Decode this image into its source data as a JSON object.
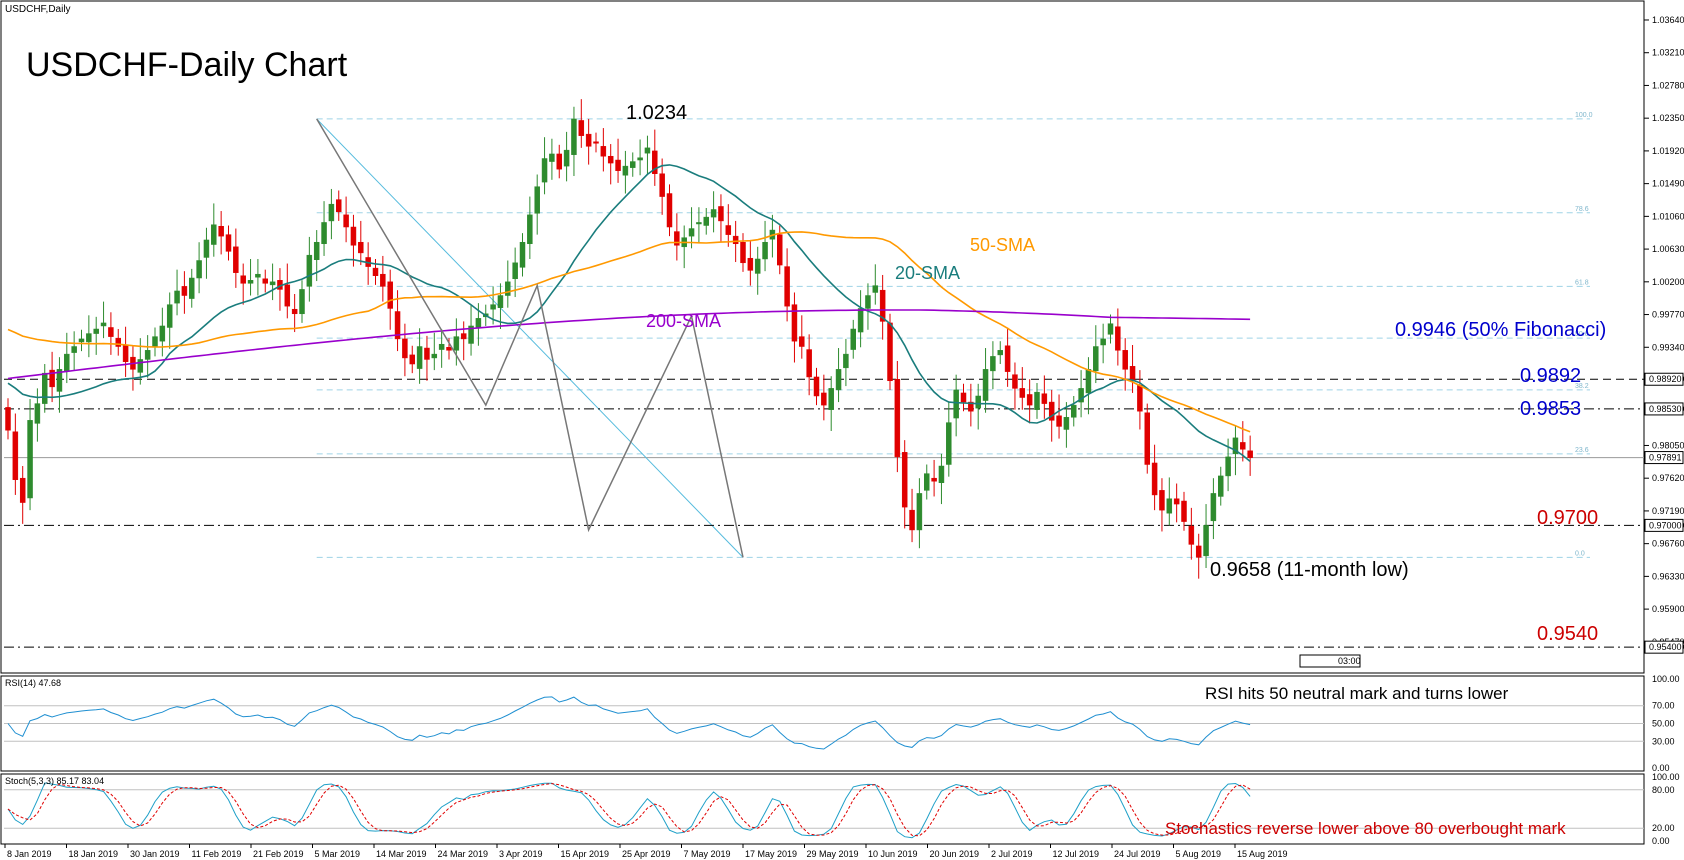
{
  "chart_data": {
    "type": "candlestick",
    "symbol_label": "USDCHF,Daily",
    "title": "USDCHF-Daily Chart",
    "price_axis": {
      "ticks": [
        "1.03640",
        "1.03210",
        "1.02780",
        "1.02350",
        "1.01920",
        "1.01490",
        "1.01060",
        "1.00630",
        "1.00200",
        "0.99770",
        "0.99340",
        "0.98920",
        "0.98530",
        "0.98050",
        "0.97620",
        "0.97190",
        "0.97000",
        "0.96760",
        "0.96330",
        "0.95900",
        "0.95470",
        "0.95400"
      ],
      "range": [
        0.951,
        1.0385
      ],
      "current": "0.97891"
    },
    "date_axis": [
      "8 Jan 2019",
      "18 Jan 2019",
      "30 Jan 2019",
      "11 Feb 2019",
      "21 Feb 2019",
      "5 Mar 2019",
      "14 Mar 2019",
      "24 Mar 2019",
      "3 Apr 2019",
      "15 Apr 2019",
      "25 Apr 2019",
      "7 May 2019",
      "17 May 2019",
      "29 May 2019",
      "10 Jun 2019",
      "20 Jun 2019",
      "2 Jul 2019",
      "12 Jul 2019",
      "24 Jul 2019",
      "5 Aug 2019",
      "15 Aug 2019"
    ],
    "levels": [
      {
        "value": 0.9892,
        "label": "0.9892",
        "axis_label": "0.98920",
        "color": "#0000cc"
      },
      {
        "value": 0.9853,
        "label": "0.9853",
        "axis_label": "0.98530",
        "color": "#0000cc"
      },
      {
        "value": 0.97,
        "label": "0.9700",
        "axis_label": "0.97000",
        "color": "#cc0000"
      },
      {
        "value": 0.954,
        "label": "0.9540",
        "axis_label": "0.95400",
        "color": "#cc0000"
      }
    ],
    "fibonacci": {
      "high": 1.0234,
      "low": 0.9658,
      "levels": [
        {
          "ratio": "100.0",
          "value": 1.0234
        },
        {
          "ratio": "78.6",
          "value": 1.01107
        },
        {
          "ratio": "61.8",
          "value": 1.0014
        },
        {
          "ratio": "50.0",
          "value": 0.9946
        },
        {
          "ratio": "38.2",
          "value": 0.9878
        },
        {
          "ratio": "23.6",
          "value": 0.97939
        },
        {
          "ratio": "0.0",
          "value": 0.9658
        }
      ]
    },
    "annotations": {
      "high": "1.0234",
      "low": "0.9658 (11-month low)",
      "fib50": "0.9946 (50% Fibonacci)",
      "sma20": "20-SMA",
      "sma50": "50-SMA",
      "sma200": "200-SMA"
    },
    "zigzag": [
      [
        42,
        1.0234
      ],
      [
        65,
        0.9858
      ],
      [
        72,
        1.0015
      ],
      [
        79,
        0.9694
      ],
      [
        93,
        0.9975
      ],
      [
        100,
        0.9658
      ]
    ],
    "candles": {
      "closes": [
        0.9825,
        0.976,
        0.973,
        0.9838,
        0.986,
        0.99,
        0.9882,
        0.9905,
        0.9925,
        0.9935,
        0.9945,
        0.9952,
        0.9958,
        0.9966,
        0.9948,
        0.9935,
        0.9915,
        0.9905,
        0.9918,
        0.993,
        0.9948,
        0.9962,
        0.999,
        1.0008,
        1.0002,
        1.0025,
        1.0048,
        1.0075,
        1.0095,
        1.008,
        1.006,
        1.0032,
        1.0018,
        1.0022,
        1.003,
        1.0018,
        1.002,
        1.001,
        0.9988,
        0.9978,
        1.001,
        1.0055,
        1.0072,
        1.0098,
        1.0122,
        1.0112,
        1.0092,
        1.0068,
        1.0058,
        1.004,
        1.0028,
        1.0014,
        0.9985,
        0.9945,
        0.992,
        0.9912,
        0.9935,
        0.9918,
        0.9925,
        0.9938,
        0.993,
        0.9948,
        0.9945,
        0.9962,
        0.9972,
        0.9978,
        0.999,
        1.0002,
        1.002,
        1.0045,
        1.0072,
        1.0108,
        1.0145,
        1.0182,
        1.0188,
        1.0168,
        1.0193,
        1.0234,
        1.0212,
        1.0198,
        1.0202,
        1.0185,
        1.0176,
        1.0166,
        1.0172,
        1.0178,
        1.0183,
        1.0196,
        1.0162,
        1.0132,
        1.0092,
        1.0068,
        1.0078,
        1.009,
        1.0098,
        1.0105,
        1.0115,
        1.01,
        1.0082,
        1.007,
        1.0045,
        1.0035,
        1.005,
        1.0072,
        1.0088,
        1.0042,
        0.9988,
        0.9942,
        0.9935,
        0.9895,
        0.987,
        0.9858,
        0.988,
        0.9905,
        0.9925,
        0.9958,
        0.9985,
        1.0002,
        1.0015,
        0.9968,
        0.989,
        0.979,
        0.9724,
        0.9694,
        0.9742,
        0.9768,
        0.9758,
        0.9778,
        0.9835,
        0.9878,
        0.9862,
        0.985,
        0.987,
        0.9905,
        0.9922,
        0.993,
        0.9902,
        0.988,
        0.9868,
        0.9858,
        0.9875,
        0.986,
        0.9838,
        0.983,
        0.9842,
        0.9858,
        0.988,
        0.9905,
        0.9935,
        0.9945,
        0.9965,
        0.993,
        0.9905,
        0.989,
        0.985,
        0.978,
        0.974,
        0.972,
        0.9735,
        0.9728,
        0.9705,
        0.9675,
        0.9658,
        0.97,
        0.9742,
        0.9765,
        0.979,
        0.9815,
        0.98,
        0.9789
      ],
      "count": 172
    },
    "series": [
      {
        "name": "20-SMA",
        "color": "#1a7d7d"
      },
      {
        "name": "50-SMA",
        "color": "#ff9900"
      },
      {
        "name": "200-SMA",
        "color": "#9900cc"
      }
    ],
    "rsi": {
      "label": "RSI(14) 47.68",
      "ticks": [
        "100.00",
        "70.00",
        "50.00",
        "30.00",
        "0.00"
      ],
      "levels": [
        70,
        50,
        30
      ],
      "annotation": "RSI hits 50 neutral mark and turns lower"
    },
    "stochastic": {
      "label": "Stoch(5,3,3) 85.17 83.04",
      "ticks": [
        "100.00",
        "80.00",
        "20.00",
        "0.00"
      ],
      "levels": [
        80,
        20
      ],
      "annotation": "Stochastics reverse lower above 80 overbought mark"
    },
    "timeframe_box": "03:00"
  }
}
